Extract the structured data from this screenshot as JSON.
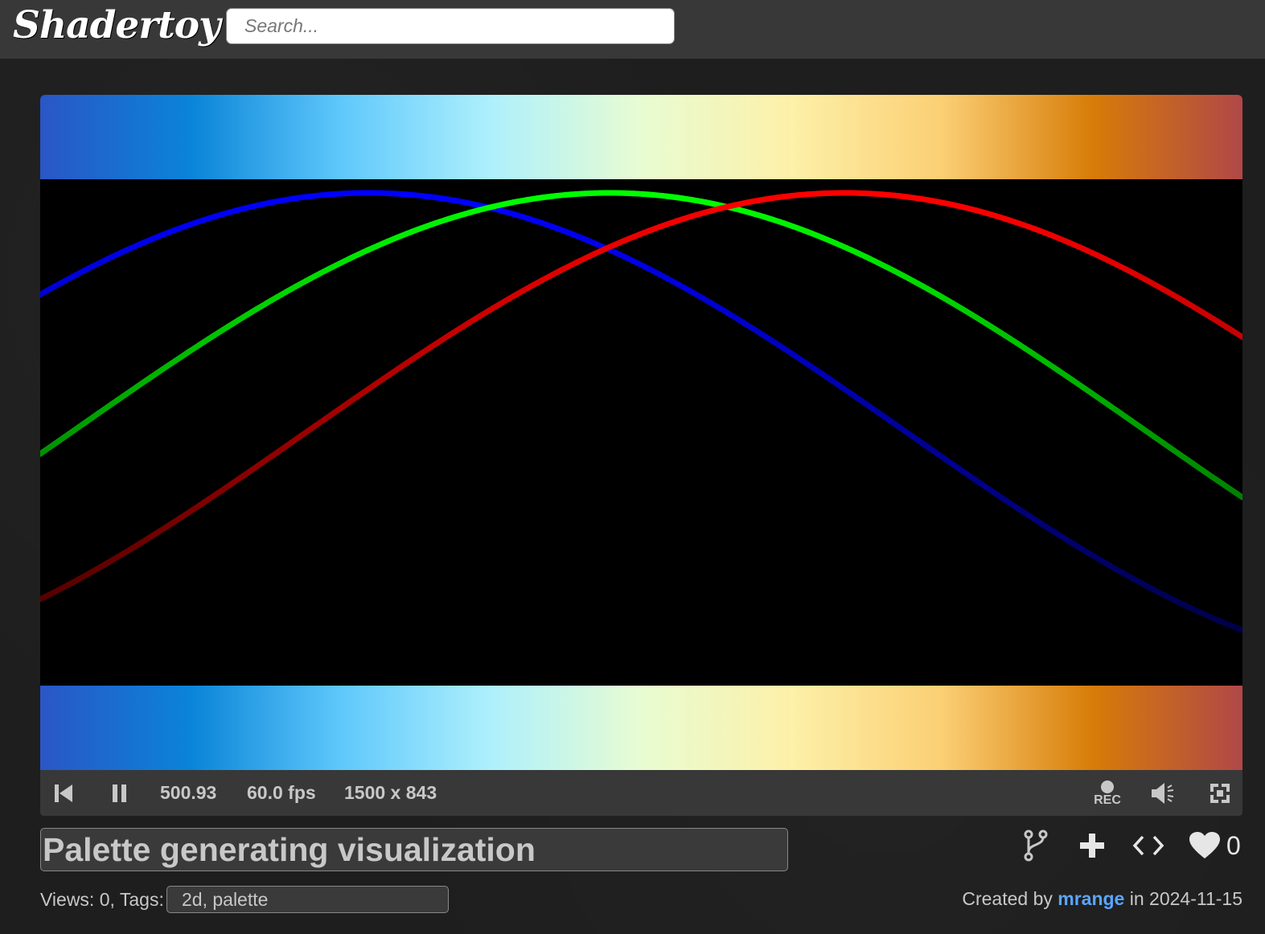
{
  "header": {
    "logo": "Shadertoy",
    "search": {
      "placeholder": "Search...",
      "value": ""
    }
  },
  "player": {
    "palette_stops": [
      "#2a56c6",
      "#0a84d8",
      "#5fc8fb",
      "#aef0fc",
      "#e8fcd2",
      "#fdf0a8",
      "#fbcf74",
      "#d77c08",
      "#b04848"
    ],
    "curves": [
      {
        "name": "blue",
        "color": "#0000ff"
      },
      {
        "name": "green",
        "color": "#00ff00"
      },
      {
        "name": "red",
        "color": "#ff0000"
      }
    ],
    "controls": {
      "time": "500.93",
      "fps": "60.0 fps",
      "resolution": "1500 x 843",
      "rec_label": "REC"
    }
  },
  "shader": {
    "title": "Palette generating visualization",
    "views_tags_label": "Views: 0, Tags:",
    "tags": "2d, palette",
    "likes": "0",
    "created_prefix": "Created by",
    "author": "mrange",
    "created_in": "in",
    "date": "2024-11-15"
  },
  "icons": {
    "rewind": "rewind-icon",
    "pause": "pause-icon",
    "record": "record-icon",
    "volume": "volume-icon",
    "fullscreen": "fullscreen-icon",
    "fork": "fork-icon",
    "add": "add-icon",
    "embed": "embed-icon",
    "like": "heart-icon"
  }
}
